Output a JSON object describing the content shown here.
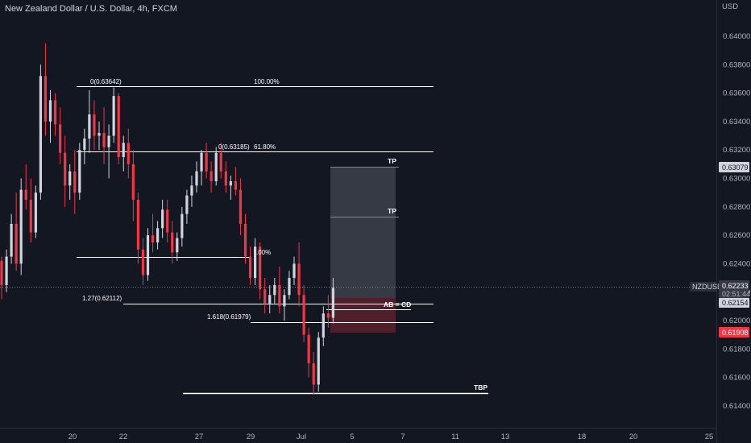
{
  "header": {
    "title": "New Zealand Dollar / U.S. Dollar, 4h, FXCM"
  },
  "colors": {
    "background": "#131722",
    "up": "#d1d4dc",
    "down": "#f23645",
    "line": "#ffffff",
    "tp_line": "#4caf50",
    "grid_text": "#b2b5be"
  },
  "chart_data": {
    "type": "candlestick",
    "currency_label": "USD",
    "ylim": [
      0.613,
      0.641
    ],
    "y_ticks": [
      "0.64000",
      "0.63800",
      "0.63600",
      "0.63400",
      "0.63200",
      "0.63000",
      "0.62800",
      "0.62600",
      "0.62400",
      "0.62200",
      "0.62000",
      "0.61800",
      "0.61600",
      "0.61400"
    ],
    "x_ticks": [
      "20",
      "22",
      "27",
      "29",
      "Jul",
      "5",
      "7",
      "11",
      "13",
      "18",
      "20",
      "25"
    ],
    "price_badges": [
      {
        "symbol": "NZDUSD",
        "value": "0.62233",
        "countdown": "02:51:44"
      },
      {
        "value": "0.63079"
      },
      {
        "value": "0.62154"
      },
      {
        "value": "0.61908"
      }
    ],
    "annotations": {
      "fib_top_left": "0(0.63642)",
      "fib_top_right": "100.00%",
      "fib_mid_left": "0(0.63185)",
      "fib_mid_right": "61.80%",
      "fib_low_right": ".00%",
      "fib_127": "1.27(0.62112)",
      "fib_1618": "1.618(0.61979)",
      "ab_cd": "AB = CD",
      "tp1": "TP",
      "tp2": "TP",
      "tbp": "TBP"
    },
    "candles": [
      [
        0.6242,
        0.6245,
        0.6215,
        0.6225
      ],
      [
        0.6225,
        0.625,
        0.622,
        0.6245
      ],
      [
        0.6245,
        0.6275,
        0.624,
        0.6268
      ],
      [
        0.6268,
        0.629,
        0.6235,
        0.624
      ],
      [
        0.624,
        0.63,
        0.6232,
        0.6292
      ],
      [
        0.6292,
        0.631,
        0.6278,
        0.6285
      ],
      [
        0.6285,
        0.63,
        0.6255,
        0.6262
      ],
      [
        0.6262,
        0.6295,
        0.6258,
        0.629
      ],
      [
        0.629,
        0.638,
        0.6285,
        0.6372
      ],
      [
        0.6372,
        0.6395,
        0.633,
        0.634
      ],
      [
        0.634,
        0.6362,
        0.6325,
        0.6355
      ],
      [
        0.6355,
        0.636,
        0.633,
        0.6338
      ],
      [
        0.6338,
        0.635,
        0.631,
        0.6318
      ],
      [
        0.6318,
        0.633,
        0.628,
        0.6295
      ],
      [
        0.6295,
        0.631,
        0.6285,
        0.6305
      ],
      [
        0.6305,
        0.632,
        0.6275,
        0.629
      ],
      [
        0.629,
        0.6325,
        0.6285,
        0.632
      ],
      [
        0.632,
        0.6335,
        0.631,
        0.6328
      ],
      [
        0.6328,
        0.6362,
        0.6318,
        0.6345
      ],
      [
        0.6345,
        0.6355,
        0.632,
        0.633
      ],
      [
        0.633,
        0.634,
        0.632,
        0.6332
      ],
      [
        0.6332,
        0.635,
        0.631,
        0.6322
      ],
      [
        0.6322,
        0.6338,
        0.63,
        0.633
      ],
      [
        0.633,
        0.6364,
        0.6325,
        0.6358
      ],
      [
        0.6358,
        0.636,
        0.631,
        0.6315
      ],
      [
        0.6315,
        0.633,
        0.6305,
        0.6325
      ],
      [
        0.6325,
        0.6335,
        0.63,
        0.631
      ],
      [
        0.631,
        0.632,
        0.627,
        0.6285
      ],
      [
        0.6285,
        0.629,
        0.624,
        0.625
      ],
      [
        0.625,
        0.6258,
        0.6225,
        0.6232
      ],
      [
        0.6232,
        0.6265,
        0.6228,
        0.626
      ],
      [
        0.626,
        0.6275,
        0.6248,
        0.6255
      ],
      [
        0.6255,
        0.627,
        0.625,
        0.6265
      ],
      [
        0.6265,
        0.6285,
        0.6258,
        0.6278
      ],
      [
        0.6278,
        0.6285,
        0.6255,
        0.6262
      ],
      [
        0.6262,
        0.627,
        0.624,
        0.6248
      ],
      [
        0.6248,
        0.6262,
        0.6242,
        0.6258
      ],
      [
        0.6258,
        0.628,
        0.6252,
        0.6275
      ],
      [
        0.6275,
        0.6292,
        0.6268,
        0.6288
      ],
      [
        0.6288,
        0.6302,
        0.628,
        0.6295
      ],
      [
        0.6295,
        0.6312,
        0.629,
        0.6305
      ],
      [
        0.6305,
        0.632,
        0.6295,
        0.6318
      ],
      [
        0.6318,
        0.6325,
        0.63,
        0.6305
      ],
      [
        0.6305,
        0.6312,
        0.629,
        0.6298
      ],
      [
        0.6298,
        0.6322,
        0.6295,
        0.6318
      ],
      [
        0.6318,
        0.6325,
        0.63,
        0.6305
      ],
      [
        0.6305,
        0.6312,
        0.629,
        0.6295
      ],
      [
        0.6295,
        0.6302,
        0.6285,
        0.6298
      ],
      [
        0.6298,
        0.6308,
        0.6288,
        0.6292
      ],
      [
        0.6292,
        0.63,
        0.626,
        0.6268
      ],
      [
        0.6268,
        0.6275,
        0.624,
        0.6245
      ],
      [
        0.6245,
        0.6252,
        0.6225,
        0.623
      ],
      [
        0.623,
        0.6258,
        0.6225,
        0.6252
      ],
      [
        0.6252,
        0.6255,
        0.6215,
        0.6222
      ],
      [
        0.6222,
        0.623,
        0.6205,
        0.6212
      ],
      [
        0.6212,
        0.6225,
        0.6205,
        0.6218
      ],
      [
        0.6218,
        0.623,
        0.6212,
        0.6225
      ],
      [
        0.6225,
        0.6238,
        0.6205,
        0.621
      ],
      [
        0.621,
        0.6222,
        0.62,
        0.6218
      ],
      [
        0.6218,
        0.6235,
        0.6215,
        0.623
      ],
      [
        0.623,
        0.6245,
        0.6225,
        0.624
      ],
      [
        0.624,
        0.6255,
        0.621,
        0.6218
      ],
      [
        0.6218,
        0.6225,
        0.6185,
        0.619
      ],
      [
        0.619,
        0.6195,
        0.616,
        0.617
      ],
      [
        0.617,
        0.6178,
        0.6148,
        0.6155
      ],
      [
        0.6155,
        0.6192,
        0.615,
        0.6188
      ],
      [
        0.6188,
        0.621,
        0.6182,
        0.6205
      ],
      [
        0.6205,
        0.6218,
        0.6195,
        0.6202
      ],
      [
        0.6202,
        0.623,
        0.6198,
        0.6223
      ]
    ]
  }
}
